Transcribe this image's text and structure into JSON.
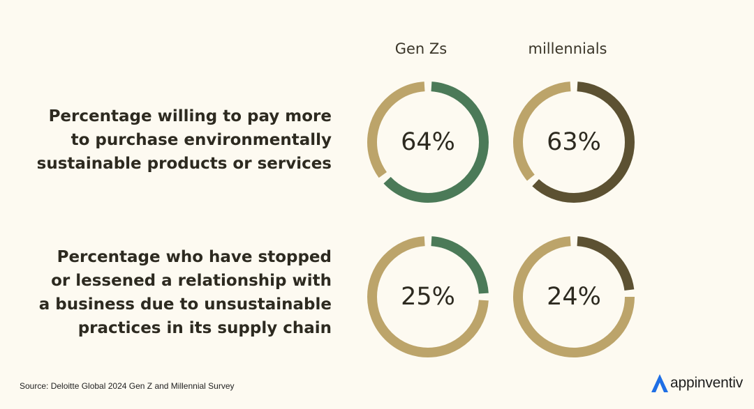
{
  "chart_data": {
    "type": "pie",
    "columns": [
      "Gen Zs",
      "millennials"
    ],
    "rows": [
      {
        "label_lines": [
          "Percentage willing to pay more",
          "to purchase environmentally",
          "sustainable products or services"
        ],
        "values": [
          64,
          63
        ],
        "value_labels": [
          "64%",
          "63%"
        ]
      },
      {
        "label_lines": [
          "Percentage who have stopped",
          "or lessened a relationship with",
          "a business due to unsustainable",
          "practices in its supply chain"
        ],
        "values": [
          25,
          24
        ],
        "value_labels": [
          "25%",
          "24%"
        ]
      }
    ],
    "colors": {
      "track": "#bca46a",
      "series": [
        "#4b7a58",
        "#5c5132"
      ]
    }
  },
  "footer": {
    "source": "Source: Deloitte Global 2024 Gen Z and Millennial Survey"
  },
  "logo": {
    "text": "appinventiv",
    "icon": "appinventiv-logo-icon",
    "color": "#1f6fe5"
  }
}
